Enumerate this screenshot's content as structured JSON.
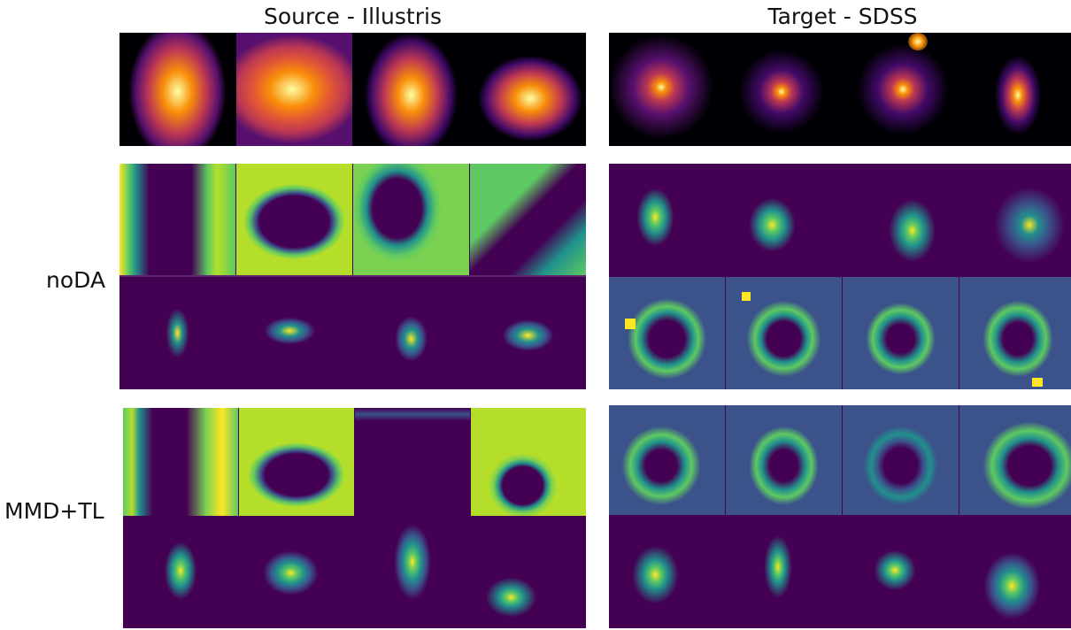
{
  "figure": {
    "columns": [
      {
        "title": "Source - Illustris"
      },
      {
        "title": "Target - SDSS"
      }
    ],
    "rows": [
      {
        "label": ""
      },
      {
        "label": "noDA"
      },
      {
        "label": "MMD+TL"
      }
    ],
    "colormaps": {
      "input": "inferno",
      "maps": "viridis"
    },
    "colors": {
      "viridis_dark": "#440154",
      "viridis_mid": "#21918c",
      "viridis_green": "#5ec962",
      "viridis_yellow": "#fde725",
      "inferno_dark": "#000004",
      "inferno_orange": "#f98e09",
      "inferno_yellow": "#fcffa4"
    }
  }
}
